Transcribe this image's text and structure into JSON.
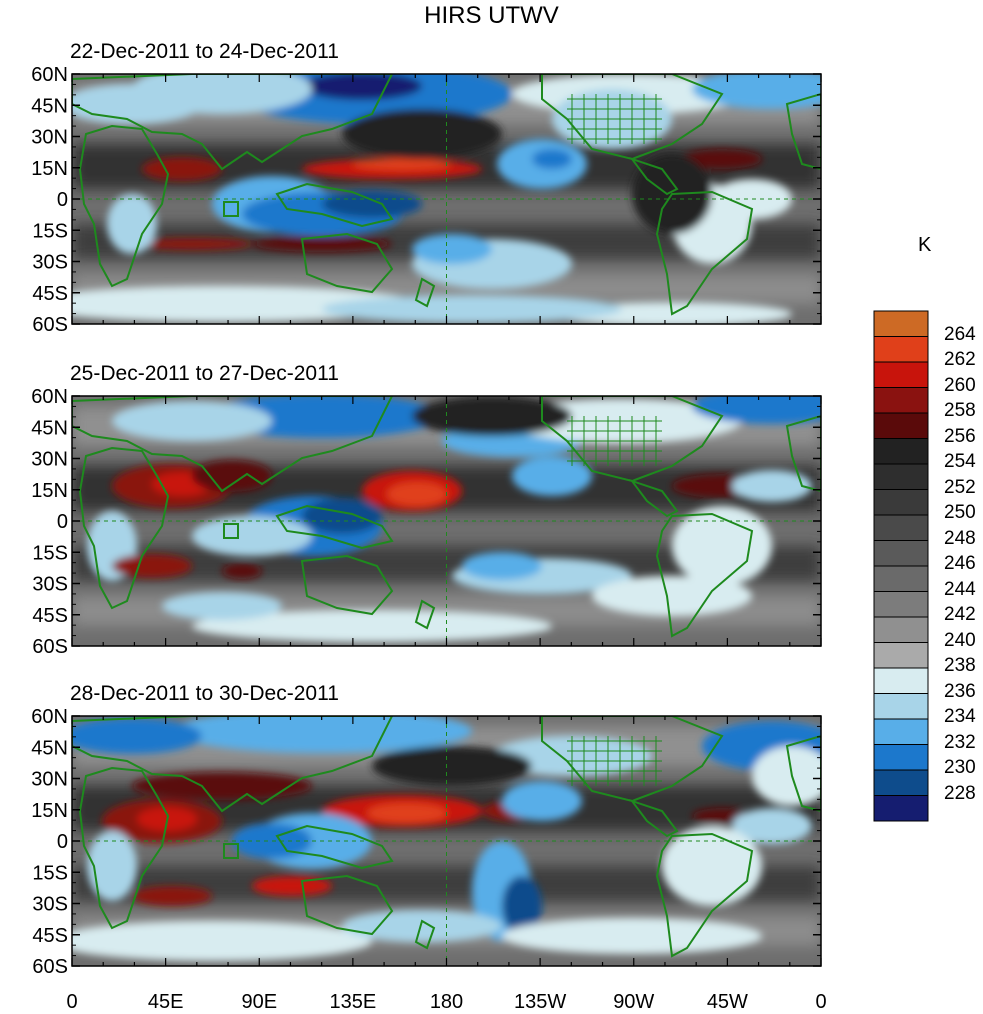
{
  "title": "HIRS UTWV",
  "colorbar": {
    "unit": "K",
    "labels": [
      "264",
      "262",
      "260",
      "258",
      "256",
      "254",
      "252",
      "250",
      "248",
      "246",
      "244",
      "242",
      "240",
      "238",
      "236",
      "234",
      "232",
      "230",
      "228"
    ],
    "colors": [
      "#cd6a25",
      "#e0401a",
      "#c8140c",
      "#8a1210",
      "#5a0a0a",
      "#222222",
      "#2e2e2e",
      "#3a3a3a",
      "#4a4a4a",
      "#5a5a5a",
      "#6a6a6a",
      "#7c7c7c",
      "#909090",
      "#aaaaaa",
      "#d8ecf0",
      "#a8d4e8",
      "#58aee8",
      "#1c78cc",
      "#0e4c8c",
      "#151d70"
    ]
  },
  "axes": {
    "lat_labels": [
      "60N",
      "45N",
      "30N",
      "15N",
      "0",
      "15S",
      "30S",
      "45S",
      "60S"
    ],
    "lon_labels": [
      "0",
      "45E",
      "90E",
      "135E",
      "180",
      "135W",
      "90W",
      "45W",
      "0"
    ]
  },
  "panels": [
    {
      "title": "22-Dec-2011 to 24-Dec-2011"
    },
    {
      "title": "25-Dec-2011 to 27-Dec-2011"
    },
    {
      "title": "28-Dec-2011 to 30-Dec-2011"
    }
  ]
}
